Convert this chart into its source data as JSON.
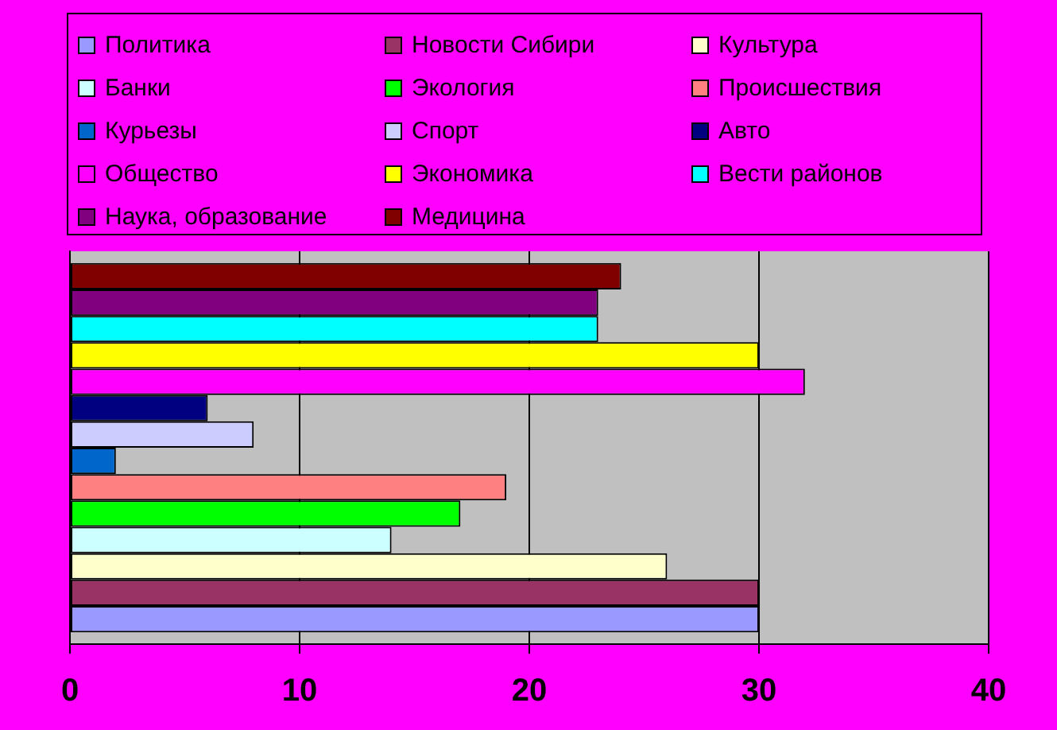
{
  "chart_data": {
    "type": "bar",
    "orientation": "horizontal",
    "categories": [
      null
    ],
    "series": [
      {
        "name": "Политика",
        "color": "#9999ff",
        "values": [
          30
        ]
      },
      {
        "name": "Новости Сибири",
        "color": "#993366",
        "values": [
          30
        ]
      },
      {
        "name": "Культура",
        "color": "#ffffcc",
        "values": [
          26
        ]
      },
      {
        "name": "Банки",
        "color": "#ccffff",
        "values": [
          14
        ]
      },
      {
        "name": "Экология",
        "color": "#00ff00",
        "values": [
          17
        ]
      },
      {
        "name": "Происшествия",
        "color": "#ff8080",
        "values": [
          19
        ]
      },
      {
        "name": "Курьезы",
        "color": "#0066cc",
        "values": [
          2
        ]
      },
      {
        "name": "Спорт",
        "color": "#ccccff",
        "values": [
          8
        ]
      },
      {
        "name": "Авто",
        "color": "#000080",
        "values": [
          6
        ]
      },
      {
        "name": "Общество",
        "color": "#ff00ff",
        "values": [
          32
        ]
      },
      {
        "name": "Экономика",
        "color": "#ffff00",
        "values": [
          30
        ]
      },
      {
        "name": "Вести районов",
        "color": "#00ffff",
        "values": [
          23
        ]
      },
      {
        "name": "Наука, образование",
        "color": "#800080",
        "values": [
          23
        ]
      },
      {
        "name": "Медицина",
        "color": "#800000",
        "values": [
          24
        ]
      }
    ],
    "xlim": [
      0,
      40
    ],
    "xticks": [
      0,
      10,
      20,
      30,
      40
    ],
    "grid": "x",
    "legend": "top",
    "tick_labels": "x"
  }
}
